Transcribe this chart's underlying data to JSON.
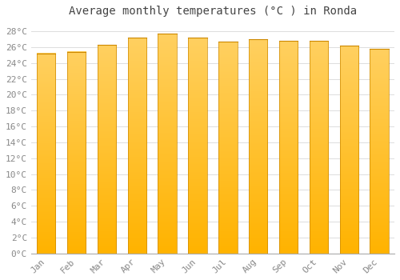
{
  "title": "Average monthly temperatures (°C ) in Ronda",
  "months": [
    "Jan",
    "Feb",
    "Mar",
    "Apr",
    "May",
    "Jun",
    "Jul",
    "Aug",
    "Sep",
    "Oct",
    "Nov",
    "Dec"
  ],
  "values": [
    25.2,
    25.4,
    26.3,
    27.2,
    27.7,
    27.2,
    26.7,
    27.0,
    26.8,
    26.8,
    26.2,
    25.8
  ],
  "bar_color_bottom": "#FFB300",
  "bar_color_top": "#FFD060",
  "background_color": "#FFFFFF",
  "grid_color": "#DDDDDD",
  "text_color": "#888888",
  "border_color": "#AAAAAA",
  "ylim": [
    0,
    29
  ],
  "ytick_step": 2,
  "title_fontsize": 10,
  "tick_fontsize": 8,
  "bar_width": 0.62
}
